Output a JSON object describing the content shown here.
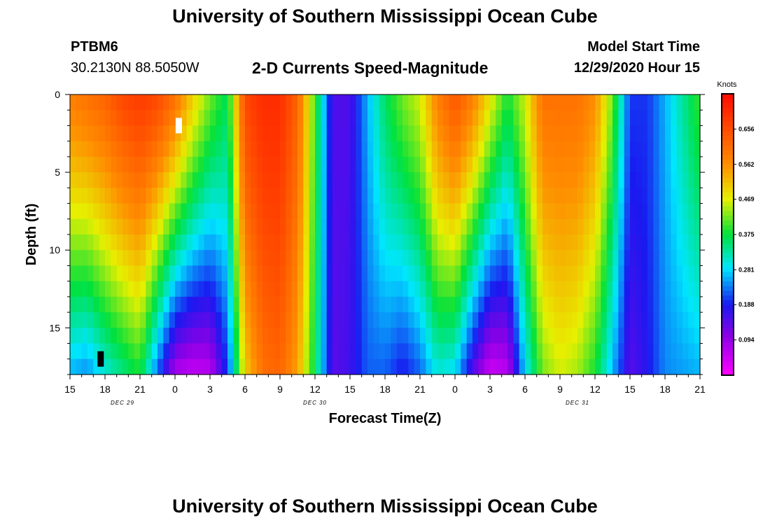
{
  "page": {
    "title_top": "University of Southern Mississippi Ocean Cube",
    "title_bottom": "University of Southern Mississippi Ocean Cube",
    "station_id": "PTBM6",
    "coordinates": "30.2130N 88.5050W",
    "subtitle": "2-D Currents Speed-Magnitude",
    "model_start_label": "Model Start Time",
    "model_start_value": "12/29/2020 Hour 15"
  },
  "chart_data": {
    "type": "heatmap",
    "title": "2-D Currents Speed-Magnitude",
    "xlabel": "Forecast Time(Z)",
    "ylabel": "Depth (ft)",
    "x_tick_labels": [
      "15",
      "18",
      "21",
      "0",
      "3",
      "6",
      "9",
      "12",
      "15",
      "18",
      "21",
      "0",
      "3",
      "6",
      "9",
      "12",
      "15",
      "18",
      "21"
    ],
    "x_hour_range": [
      0,
      54
    ],
    "day_labels": [
      {
        "label": "DEC 29",
        "hour": 4.5
      },
      {
        "label": "DEC 30",
        "hour": 21
      },
      {
        "label": "DEC 31",
        "hour": 43.5
      }
    ],
    "y_ticks": [
      0,
      5,
      10,
      15
    ],
    "ylim": [
      0,
      18
    ],
    "colorbar": {
      "unit_label": "Knots",
      "tick_values": [
        "0.656",
        "0.562",
        "0.469",
        "0.375",
        "0.281",
        "0.188",
        "0.094"
      ],
      "range": [
        0.0,
        0.75
      ]
    },
    "value_range_knots": [
      0.0,
      0.75
    ],
    "time_profile_hours": [
      0,
      1.5,
      3,
      4.5,
      6,
      7.5,
      9,
      10.5,
      12,
      13.5,
      15,
      16.5,
      18,
      19.5,
      21,
      22.5,
      24,
      25.5,
      27,
      28.5,
      30,
      31.5,
      33,
      34.5,
      36,
      37.5,
      39,
      40.5,
      42,
      43.5,
      45,
      46.5,
      48,
      49.5,
      51,
      52.5,
      54
    ],
    "surface_speed_knots": [
      0.58,
      0.6,
      0.62,
      0.66,
      0.68,
      0.66,
      0.6,
      0.5,
      0.42,
      0.36,
      0.66,
      0.7,
      0.7,
      0.62,
      0.4,
      0.15,
      0.15,
      0.26,
      0.36,
      0.42,
      0.46,
      0.58,
      0.64,
      0.58,
      0.48,
      0.38,
      0.46,
      0.6,
      0.6,
      0.6,
      0.56,
      0.42,
      0.2,
      0.2,
      0.26,
      0.33,
      0.4
    ],
    "bottom_speed_knots": [
      0.26,
      0.24,
      0.3,
      0.34,
      0.38,
      0.22,
      0.07,
      0.05,
      0.06,
      0.2,
      0.5,
      0.6,
      0.62,
      0.54,
      0.36,
      0.14,
      0.16,
      0.22,
      0.22,
      0.18,
      0.22,
      0.3,
      0.28,
      0.14,
      0.04,
      0.06,
      0.28,
      0.42,
      0.46,
      0.44,
      0.38,
      0.26,
      0.14,
      0.18,
      0.24,
      0.25,
      0.26
    ],
    "markers": [
      {
        "shape": "white bar",
        "hour": 9.3,
        "depth_ft": 2
      },
      {
        "shape": "black bar",
        "hour": 2.6,
        "depth_ft": 17
      }
    ]
  }
}
